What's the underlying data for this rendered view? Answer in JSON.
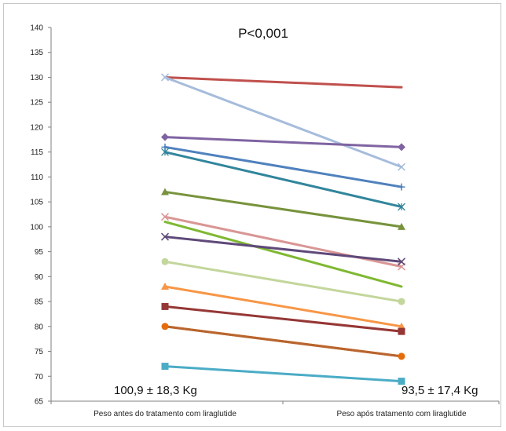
{
  "chart_data": {
    "type": "line",
    "title": "P<0,001",
    "xlabel": "",
    "ylabel": "",
    "categories": [
      "Peso antes do tratamento com liraglutide",
      "Peso após tratamento com liraglutide"
    ],
    "ylim": [
      65,
      140
    ],
    "yticks": [
      65,
      70,
      75,
      80,
      85,
      90,
      95,
      100,
      105,
      110,
      115,
      120,
      125,
      130,
      135,
      140
    ],
    "grid": false,
    "legend": "none",
    "annotations": {
      "before_stat": "100,9 ± 18,3 Kg",
      "after_stat": "93,5 ± 17,4 Kg"
    },
    "series": [
      {
        "values": [
          130,
          128
        ],
        "color": "#c0504d",
        "marker": "none"
      },
      {
        "values": [
          130,
          112
        ],
        "color": "#a6bcdc",
        "marker": "x"
      },
      {
        "values": [
          118,
          116
        ],
        "color": "#8064a2",
        "marker": "diamond"
      },
      {
        "values": [
          116,
          108
        ],
        "color": "#4f81bd",
        "marker": "plus"
      },
      {
        "values": [
          115,
          104
        ],
        "color": "#31859c",
        "marker": "star"
      },
      {
        "values": [
          107,
          100
        ],
        "color": "#77933c",
        "marker": "triangle"
      },
      {
        "values": [
          102,
          92
        ],
        "color": "#d99694",
        "marker": "x"
      },
      {
        "values": [
          101,
          88
        ],
        "color": "#7fb832",
        "marker": "none"
      },
      {
        "values": [
          98,
          93
        ],
        "color": "#5f497a",
        "marker": "x"
      },
      {
        "values": [
          93,
          85
        ],
        "color": "#c3d69b",
        "marker": "circle"
      },
      {
        "values": [
          88,
          80
        ],
        "color": "#f79646",
        "marker": "triangle"
      },
      {
        "values": [
          84,
          79
        ],
        "color": "#953735",
        "marker": "square"
      },
      {
        "values": [
          80,
          74
        ],
        "color": "#e46c0a",
        "marker": "circle"
      },
      {
        "values": [
          80,
          74
        ],
        "color": "#b86530",
        "marker": "none"
      },
      {
        "values": [
          72,
          69
        ],
        "color": "#4bacc6",
        "marker": "square"
      }
    ]
  }
}
